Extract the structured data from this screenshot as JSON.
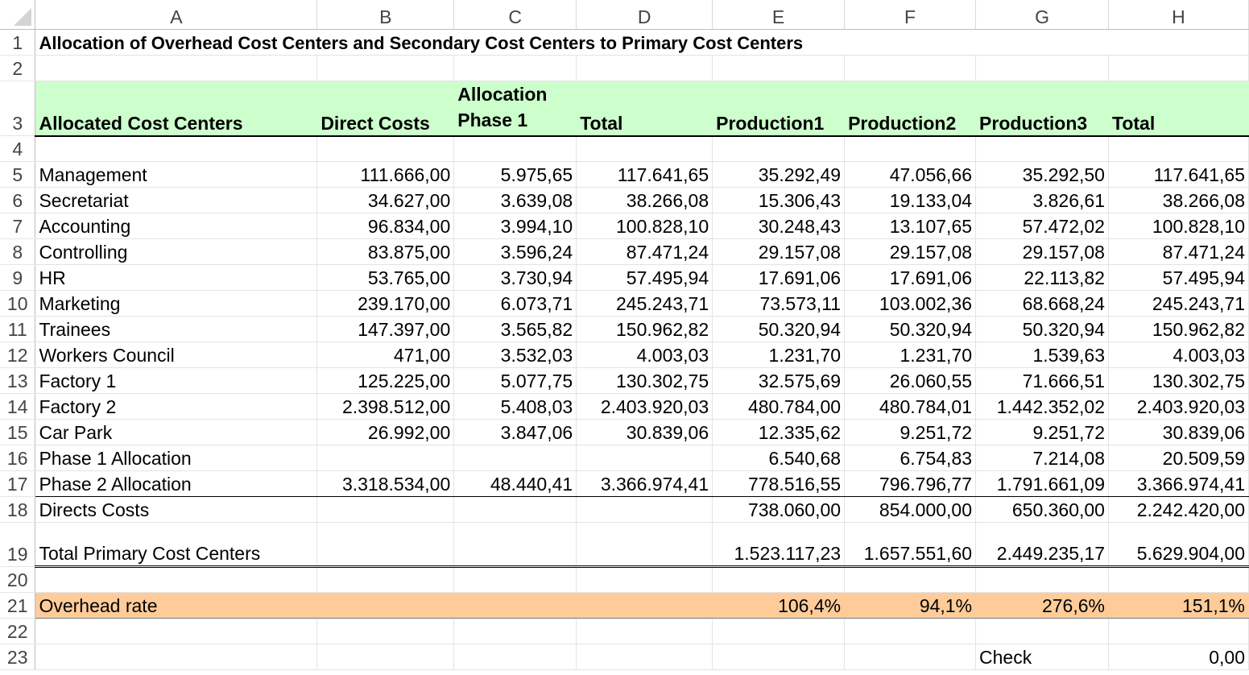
{
  "columns": [
    "A",
    "B",
    "C",
    "D",
    "E",
    "F",
    "G",
    "H"
  ],
  "rows": [
    "1",
    "2",
    "3",
    "4",
    "5",
    "6",
    "7",
    "8",
    "9",
    "10",
    "11",
    "12",
    "13",
    "14",
    "15",
    "16",
    "17",
    "18",
    "19",
    "20",
    "21",
    "22",
    "23"
  ],
  "title": "Allocation of Overhead Cost Centers and Secondary Cost Centers to Primary Cost Centers",
  "header": {
    "allocated": "Allocated Cost Centers",
    "direct_costs": "Direct Costs",
    "allocation_line1": "Allocation",
    "allocation_line2": "Phase 1",
    "total": "Total",
    "production1": "Production1",
    "production2": "Production2",
    "production3": "Production3",
    "total2": "Total"
  },
  "cost_centers": [
    {
      "name": "Management",
      "direct": "111.666,00",
      "phase1": "5.975,65",
      "total": "117.641,65",
      "p1": "35.292,49",
      "p2": "47.056,66",
      "p3": "35.292,50",
      "sum": "117.641,65"
    },
    {
      "name": "Secretariat",
      "direct": "34.627,00",
      "phase1": "3.639,08",
      "total": "38.266,08",
      "p1": "15.306,43",
      "p2": "19.133,04",
      "p3": "3.826,61",
      "sum": "38.266,08"
    },
    {
      "name": "Accounting",
      "direct": "96.834,00",
      "phase1": "3.994,10",
      "total": "100.828,10",
      "p1": "30.248,43",
      "p2": "13.107,65",
      "p3": "57.472,02",
      "sum": "100.828,10"
    },
    {
      "name": "Controlling",
      "direct": "83.875,00",
      "phase1": "3.596,24",
      "total": "87.471,24",
      "p1": "29.157,08",
      "p2": "29.157,08",
      "p3": "29.157,08",
      "sum": "87.471,24"
    },
    {
      "name": "HR",
      "direct": "53.765,00",
      "phase1": "3.730,94",
      "total": "57.495,94",
      "p1": "17.691,06",
      "p2": "17.691,06",
      "p3": "22.113,82",
      "sum": "57.495,94"
    },
    {
      "name": "Marketing",
      "direct": "239.170,00",
      "phase1": "6.073,71",
      "total": "245.243,71",
      "p1": "73.573,11",
      "p2": "103.002,36",
      "p3": "68.668,24",
      "sum": "245.243,71"
    },
    {
      "name": "Trainees",
      "direct": "147.397,00",
      "phase1": "3.565,82",
      "total": "150.962,82",
      "p1": "50.320,94",
      "p2": "50.320,94",
      "p3": "50.320,94",
      "sum": "150.962,82"
    },
    {
      "name": "Workers Council",
      "direct": "471,00",
      "phase1": "3.532,03",
      "total": "4.003,03",
      "p1": "1.231,70",
      "p2": "1.231,70",
      "p3": "1.539,63",
      "sum": "4.003,03"
    },
    {
      "name": "Factory 1",
      "direct": "125.225,00",
      "phase1": "5.077,75",
      "total": "130.302,75",
      "p1": "32.575,69",
      "p2": "26.060,55",
      "p3": "71.666,51",
      "sum": "130.302,75"
    },
    {
      "name": "Factory 2",
      "direct": "2.398.512,00",
      "phase1": "5.408,03",
      "total": "2.403.920,03",
      "p1": "480.784,00",
      "p2": "480.784,01",
      "p3": "1.442.352,02",
      "sum": "2.403.920,03"
    },
    {
      "name": "Car Park",
      "direct": "26.992,00",
      "phase1": "3.847,06",
      "total": "30.839,06",
      "p1": "12.335,62",
      "p2": "9.251,72",
      "p3": "9.251,72",
      "sum": "30.839,06"
    }
  ],
  "phase1_allocation": {
    "label": "Phase 1 Allocation",
    "p1": "6.540,68",
    "p2": "6.754,83",
    "p3": "7.214,08",
    "sum": "20.509,59"
  },
  "phase2_allocation": {
    "label": "Phase 2 Allocation",
    "direct": "3.318.534,00",
    "phase1": "48.440,41",
    "total": "3.366.974,41",
    "p1": "778.516,55",
    "p2": "796.796,77",
    "p3": "1.791.661,09",
    "sum": "3.366.974,41"
  },
  "directs_costs": {
    "label": "Directs Costs",
    "p1": "738.060,00",
    "p2": "854.000,00",
    "p3": "650.360,00",
    "sum": "2.242.420,00"
  },
  "total_primary": {
    "label": "Total Primary Cost Centers",
    "p1": "1.523.117,23",
    "p2": "1.657.551,60",
    "p3": "2.449.235,17",
    "sum": "5.629.904,00"
  },
  "overhead_rate": {
    "label": "Overhead rate",
    "p1": "106,4%",
    "p2": "94,1%",
    "p3": "276,6%",
    "sum": "151,1%"
  },
  "check": {
    "label": "Check",
    "value": "0,00"
  },
  "colors": {
    "header_fill": "#ccffcc",
    "rate_fill": "#ffcc99"
  }
}
